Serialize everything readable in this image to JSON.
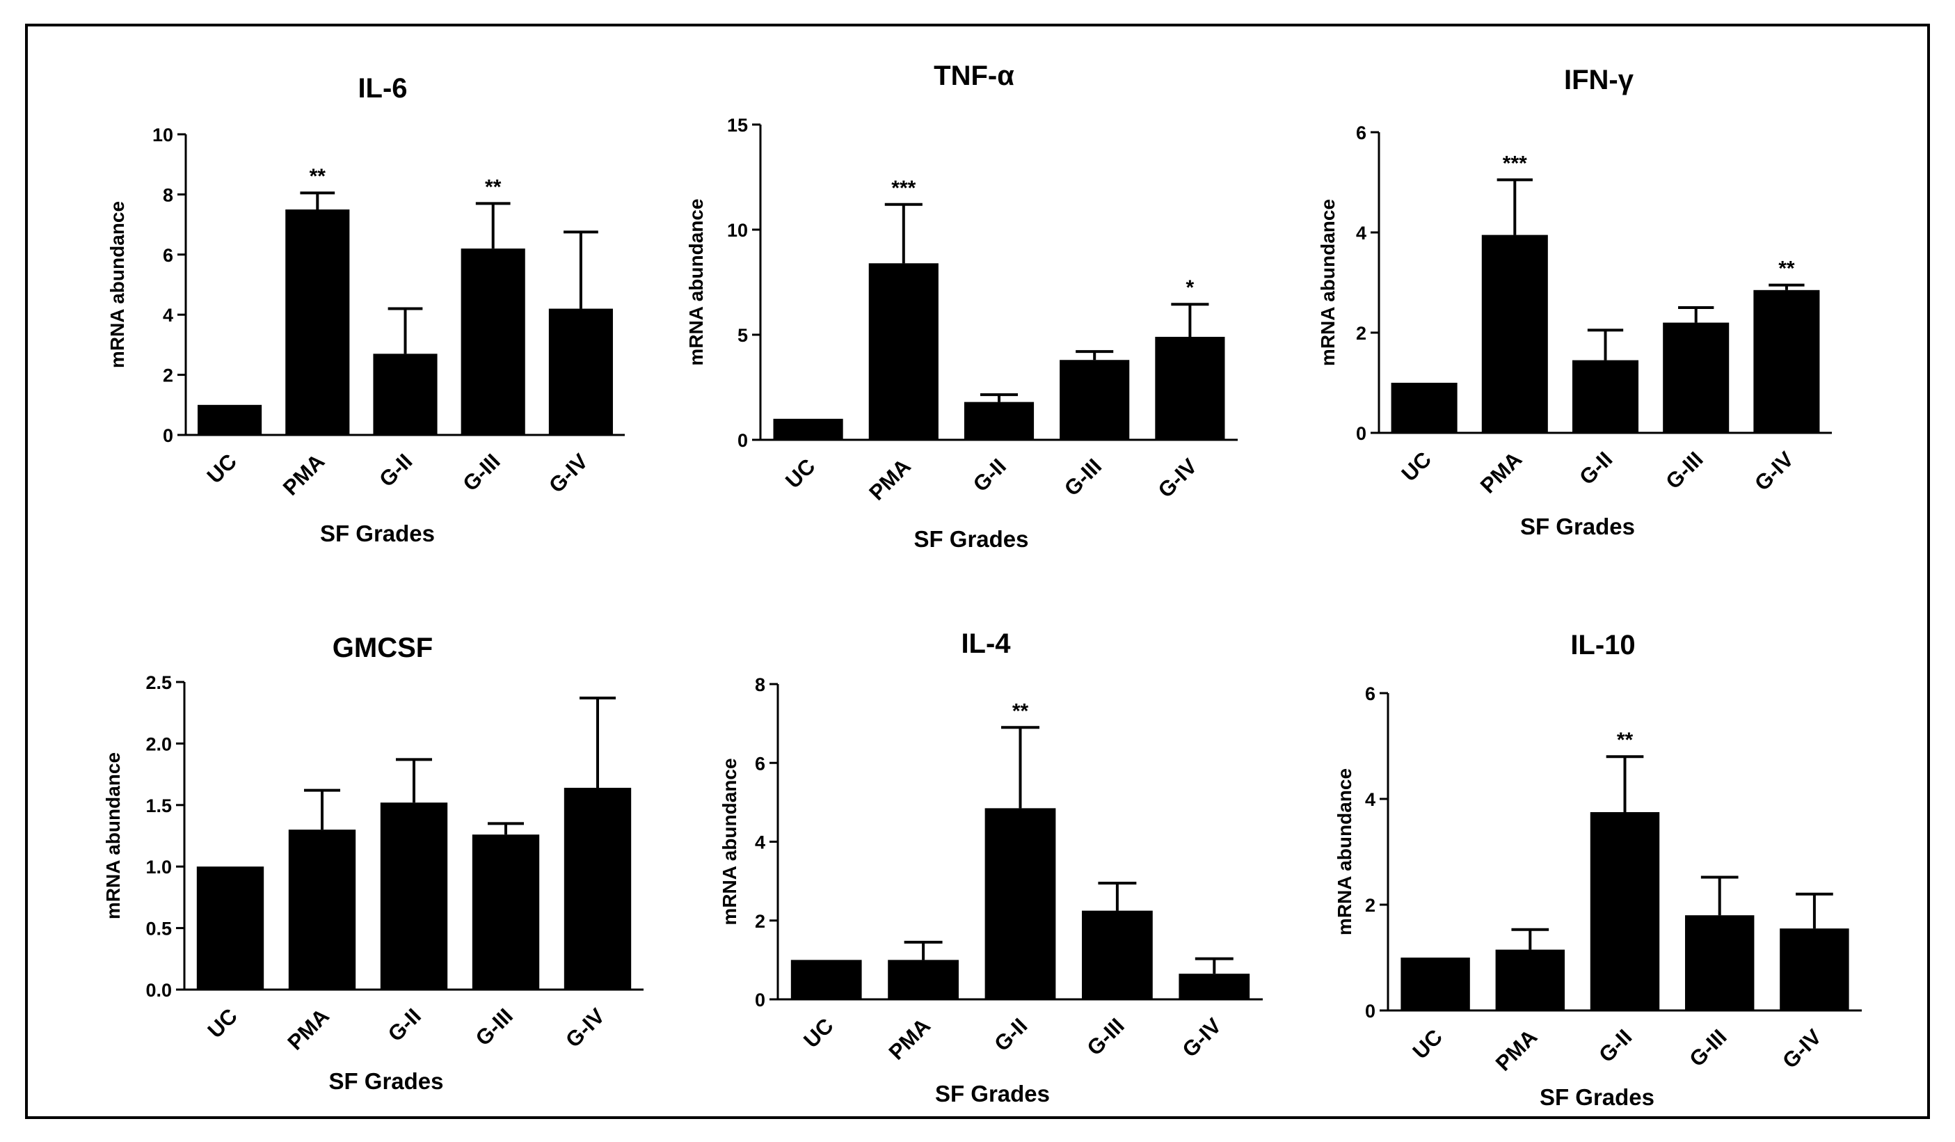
{
  "figure": {
    "bar_color": "#000000",
    "background": "#ffffff"
  },
  "chart_data": [
    {
      "type": "bar",
      "title": "IL-6",
      "xlabel": "SF Grades",
      "ylabel": "mRNA abundance",
      "categories": [
        "UC",
        "PMA",
        "G-II",
        "G-III",
        "G-IV"
      ],
      "values": [
        1,
        7.5,
        2.7,
        6.2,
        4.2
      ],
      "errors": [
        0,
        0.55,
        1.5,
        1.5,
        2.55
      ],
      "significance": [
        "",
        "**",
        "",
        "**",
        ""
      ],
      "ylim": [
        0,
        10
      ],
      "yticks": [
        "0",
        "2",
        "4",
        "6",
        "8",
        "10"
      ]
    },
    {
      "type": "bar",
      "title": "TNF-α",
      "xlabel": "SF Grades",
      "ylabel": "mRNA abundance",
      "categories": [
        "UC",
        "PMA",
        "G-II",
        "G-III",
        "G-IV"
      ],
      "values": [
        1,
        8.4,
        1.8,
        3.8,
        4.9
      ],
      "errors": [
        0,
        2.8,
        0.35,
        0.4,
        1.55
      ],
      "significance": [
        "",
        "***",
        "",
        "",
        "*"
      ],
      "ylim": [
        0,
        15
      ],
      "yticks": [
        "0",
        "5",
        "10",
        "15"
      ]
    },
    {
      "type": "bar",
      "title": "IFN-γ",
      "xlabel": "SF Grades",
      "ylabel": "mRNA abundance",
      "categories": [
        "UC",
        "PMA",
        "G-II",
        "G-III",
        "G-IV"
      ],
      "values": [
        1,
        3.95,
        1.45,
        2.2,
        2.85
      ],
      "errors": [
        0,
        1.1,
        0.6,
        0.3,
        0.1
      ],
      "significance": [
        "",
        "***",
        "",
        "",
        "**"
      ],
      "ylim": [
        0,
        6
      ],
      "yticks": [
        "0",
        "2",
        "4",
        "6"
      ]
    },
    {
      "type": "bar",
      "title": "GMCSF",
      "xlabel": "",
      "ylabel": "mRNA abundance",
      "categories": [
        "UC",
        "PMA",
        "G-II",
        "G-III",
        "G-IV"
      ],
      "values": [
        1.0,
        1.3,
        1.52,
        1.26,
        1.64
      ],
      "errors": [
        0,
        0.32,
        0.35,
        0.09,
        0.73
      ],
      "significance": [
        "",
        "",
        "",
        "",
        ""
      ],
      "ylim": [
        0,
        2.5
      ],
      "yticks": [
        "0.0",
        "0.5",
        "1.0",
        "1.5",
        "2.0",
        "2.5"
      ]
    },
    {
      "type": "bar",
      "title": "IL-4",
      "xlabel": "SF Grades",
      "ylabel": "mRNA abundance",
      "categories": [
        "UC",
        "PMA",
        "G-II",
        "G-III",
        "G-IV"
      ],
      "values": [
        1,
        1,
        4.85,
        2.25,
        0.65
      ],
      "errors": [
        0,
        0.45,
        2.05,
        0.7,
        0.38
      ],
      "significance": [
        "",
        "",
        "**",
        "",
        ""
      ],
      "ylim": [
        0,
        8
      ],
      "yticks": [
        "0",
        "2",
        "4",
        "6",
        "8"
      ]
    },
    {
      "type": "bar",
      "title": "IL-10",
      "xlabel": "SF Grades",
      "ylabel": "mRNA abundance",
      "categories": [
        "UC",
        "PMA",
        "G-II",
        "G-III",
        "G-IV"
      ],
      "values": [
        1,
        1.15,
        3.75,
        1.8,
        1.55
      ],
      "errors": [
        0,
        0.38,
        1.05,
        0.72,
        0.65
      ],
      "significance": [
        "",
        "",
        "**",
        "",
        ""
      ],
      "ylim": [
        0,
        6
      ],
      "yticks": [
        "0",
        "2",
        "4",
        "6"
      ]
    }
  ]
}
